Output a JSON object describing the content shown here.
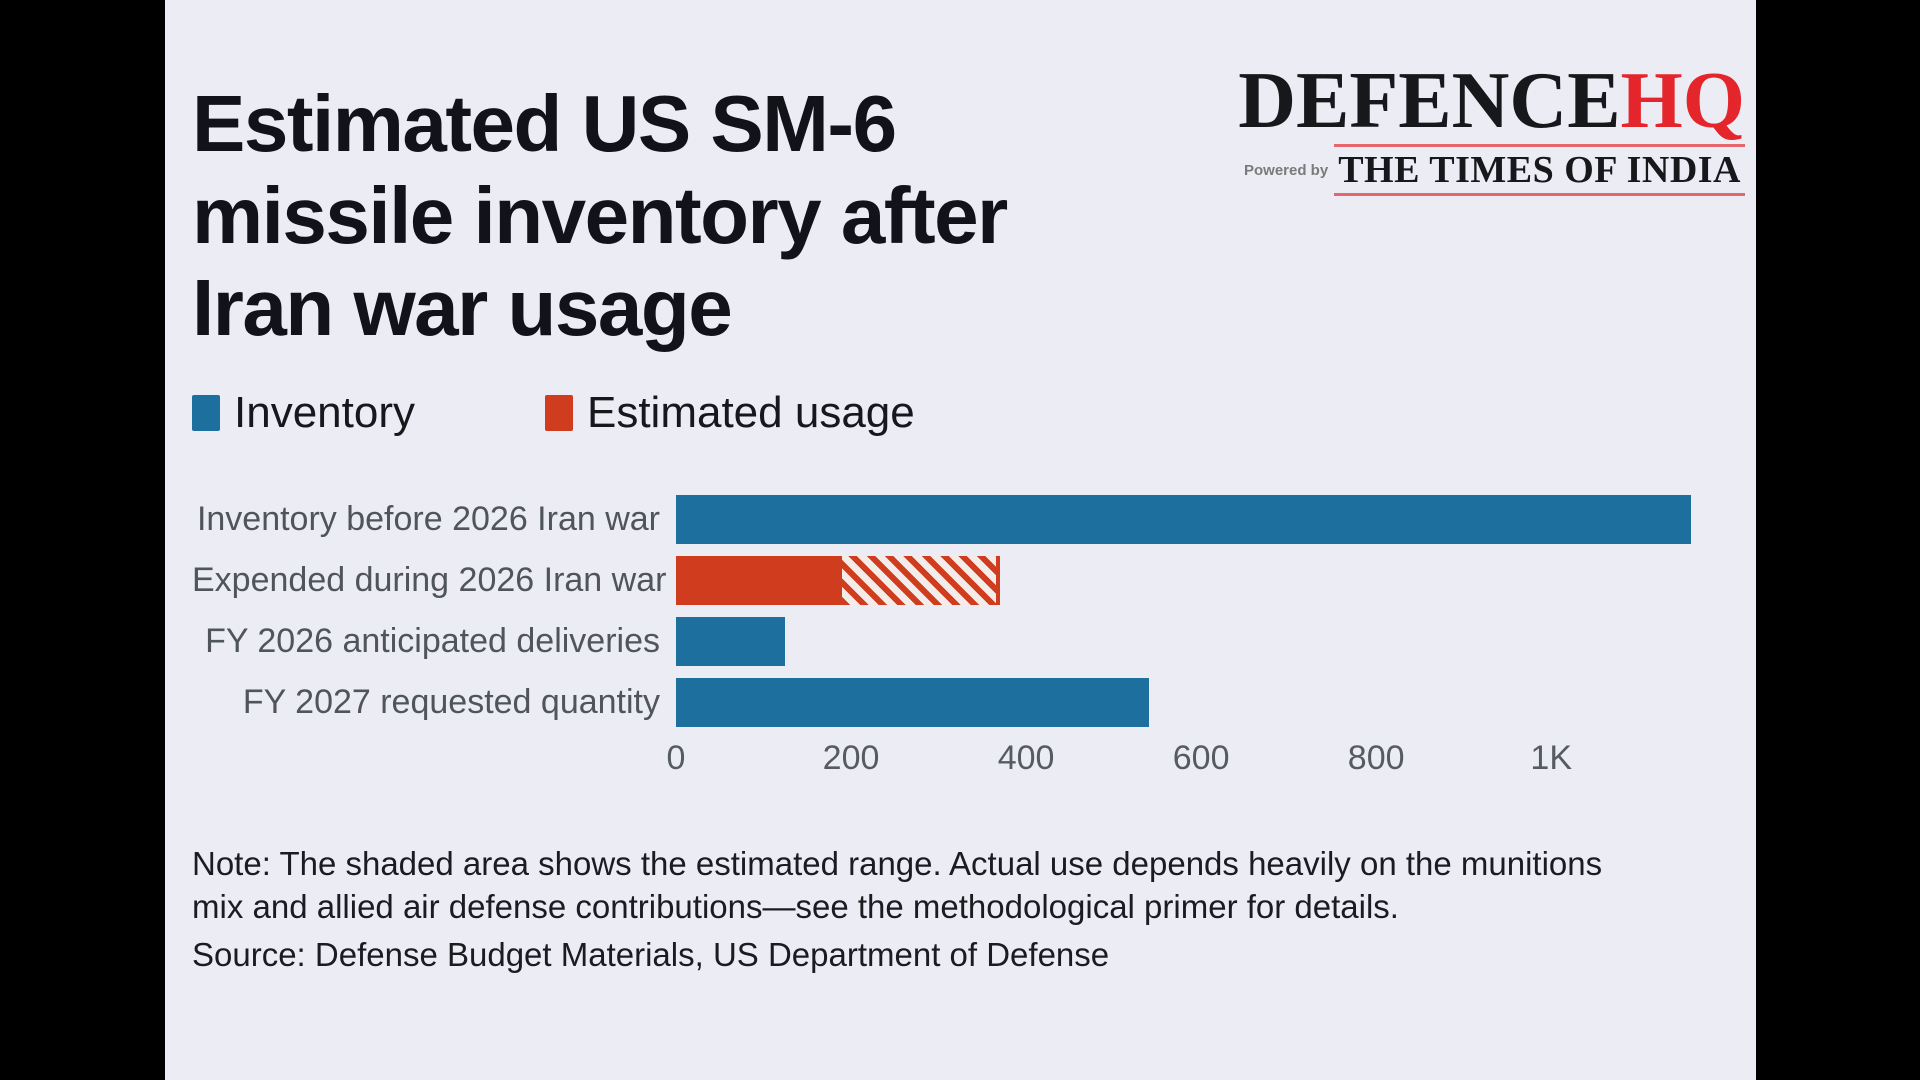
{
  "title": {
    "lines": [
      "Estimated US SM-6",
      "missile inventory after",
      "Iran war usage"
    ]
  },
  "logo": {
    "brand_black": "DEFENCE",
    "brand_red": "HQ",
    "powered_by": "Powered by",
    "partner": "THE TIMES OF INDIA",
    "accent_red": "#e4262c"
  },
  "legend": {
    "items": [
      {
        "label": "Inventory",
        "color": "#1d6f9d"
      },
      {
        "label": "Estimated usage",
        "color": "#d03c1e"
      }
    ]
  },
  "chart_data": {
    "type": "bar",
    "orientation": "horizontal",
    "title": "Estimated US SM-6 missile inventory after Iran war usage",
    "xlabel": "",
    "ylabel": "",
    "xlim": [
      0,
      1170
    ],
    "grid": false,
    "legend_position": "top-left",
    "xticks": [
      {
        "value": 0,
        "label": "0"
      },
      {
        "value": 200,
        "label": "200"
      },
      {
        "value": 400,
        "label": "400"
      },
      {
        "value": 600,
        "label": "600"
      },
      {
        "value": 800,
        "label": "800"
      },
      {
        "value": 1000,
        "label": "1K"
      }
    ],
    "series_colors": {
      "Inventory": "#1d6f9d",
      "Estimated usage": "#d03c1e"
    },
    "bars": [
      {
        "category": "Inventory before 2026 Iran war",
        "series": "Inventory",
        "value": 1160
      },
      {
        "category": "Expended during 2026 Iran war",
        "series": "Estimated usage",
        "value": 190,
        "range_max": 370,
        "range_style": "hatched"
      },
      {
        "category": "FY 2026 anticipated deliveries",
        "series": "Inventory",
        "value": 125
      },
      {
        "category": "FY 2027 requested quantity",
        "series": "Inventory",
        "value": 540
      }
    ]
  },
  "note": {
    "text": "Note: The shaded area shows the estimated range. Actual use depends heavily on the munitions mix and allied air defense contributions—see the methodological primer for details."
  },
  "source": {
    "text": "Source: Defense Budget Materials, US Department of Defense"
  },
  "colors": {
    "page_bg": "#000000",
    "card_bg": "#ecedf4",
    "title": "#121318",
    "category_label": "#50555d",
    "tick_label": "#565b63",
    "note_text": "#1b1c20"
  }
}
